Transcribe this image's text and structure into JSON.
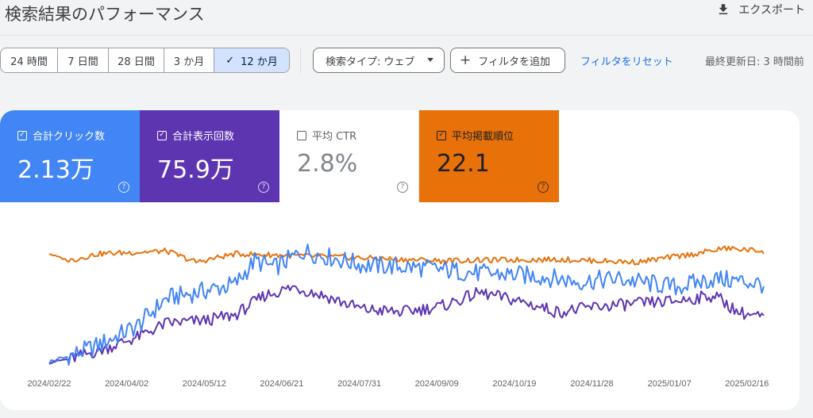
{
  "header": {
    "title": "検索結果のパフォーマンス",
    "export_label": "エクスポート"
  },
  "date_ranges": [
    {
      "label": "24 時間",
      "active": false
    },
    {
      "label": "7 日間",
      "active": false
    },
    {
      "label": "28 日間",
      "active": false
    },
    {
      "label": "3 か月",
      "active": false
    },
    {
      "label": "12 か月",
      "active": true
    }
  ],
  "filters": {
    "search_type_label": "検索タイプ: ウェブ",
    "add_filter_label": "フィルタを追加",
    "reset_label": "フィルタをリセット",
    "last_updated": "最終更新日: 3 時間前"
  },
  "metrics": {
    "clicks": {
      "label": "合計クリック数",
      "value": "2.13万",
      "checked": true,
      "color": "#4285f4"
    },
    "impressions": {
      "label": "合計表示回数",
      "value": "75.9万",
      "checked": true,
      "color": "#5e35b1"
    },
    "ctr": {
      "label": "平均 CTR",
      "value": "2.8%",
      "checked": false
    },
    "position": {
      "label": "平均掲載順位",
      "value": "22.1",
      "checked": true,
      "color": "#e8710a"
    }
  },
  "chart_data": {
    "type": "line",
    "x_tick_labels": [
      "2024/02/22",
      "2024/04/02",
      "2024/05/12",
      "2024/06/21",
      "2024/07/31",
      "2024/09/09",
      "2024/10/19",
      "2024/11/28",
      "2025/01/07",
      "2025/02/16"
    ],
    "x_range": [
      "2024/02/22",
      "2025/02/21"
    ],
    "y_axis_labels_shown": false,
    "grid": false,
    "series": [
      {
        "name": "合計クリック数",
        "color": "#4285f4",
        "keyframes": [
          [
            0,
            2
          ],
          [
            10,
            6
          ],
          [
            25,
            14
          ],
          [
            45,
            28
          ],
          [
            60,
            48
          ],
          [
            75,
            52
          ],
          [
            95,
            58
          ],
          [
            105,
            75
          ],
          [
            115,
            70
          ],
          [
            130,
            82
          ],
          [
            160,
            72
          ],
          [
            190,
            70
          ],
          [
            220,
            66
          ],
          [
            250,
            64
          ],
          [
            270,
            60
          ],
          [
            290,
            62
          ],
          [
            320,
            56
          ],
          [
            340,
            62
          ],
          [
            355,
            60
          ],
          [
            365,
            58
          ]
        ]
      },
      {
        "name": "合計表示回数",
        "color": "#5e35b1",
        "keyframes": [
          [
            0,
            2
          ],
          [
            10,
            4
          ],
          [
            25,
            10
          ],
          [
            45,
            20
          ],
          [
            60,
            30
          ],
          [
            80,
            32
          ],
          [
            95,
            36
          ],
          [
            110,
            50
          ],
          [
            125,
            56
          ],
          [
            140,
            50
          ],
          [
            160,
            40
          ],
          [
            180,
            38
          ],
          [
            200,
            42
          ],
          [
            220,
            52
          ],
          [
            240,
            46
          ],
          [
            260,
            38
          ],
          [
            280,
            42
          ],
          [
            300,
            44
          ],
          [
            320,
            46
          ],
          [
            340,
            50
          ],
          [
            352,
            38
          ],
          [
            365,
            34
          ]
        ]
      },
      {
        "name": "平均掲載順位",
        "color": "#e8710a",
        "keyframes": [
          [
            0,
            80
          ],
          [
            10,
            75
          ],
          [
            25,
            80
          ],
          [
            60,
            82
          ],
          [
            75,
            74
          ],
          [
            95,
            80
          ],
          [
            140,
            78
          ],
          [
            200,
            75
          ],
          [
            260,
            76
          ],
          [
            300,
            74
          ],
          [
            330,
            80
          ],
          [
            345,
            84
          ],
          [
            365,
            82
          ]
        ]
      }
    ]
  }
}
